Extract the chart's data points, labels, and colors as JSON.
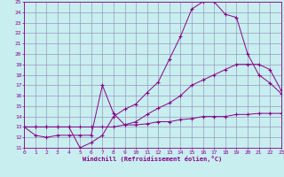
{
  "xlabel": "Windchill (Refroidissement éolien,°C)",
  "bg_color": "#c8eef0",
  "line_color": "#880088",
  "grid_color": "#9999bb",
  "xlim": [
    0,
    23
  ],
  "ylim": [
    11,
    25
  ],
  "xticks": [
    0,
    1,
    2,
    3,
    4,
    5,
    6,
    7,
    8,
    9,
    10,
    11,
    12,
    13,
    14,
    15,
    16,
    17,
    18,
    19,
    20,
    21,
    22,
    23
  ],
  "yticks": [
    11,
    12,
    13,
    14,
    15,
    16,
    17,
    18,
    19,
    20,
    21,
    22,
    23,
    24,
    25
  ],
  "curve1_x": [
    0,
    1,
    2,
    3,
    4,
    5,
    6,
    7,
    8,
    9,
    10,
    11,
    12,
    13,
    14,
    15,
    16,
    17,
    18,
    19,
    20,
    21,
    22,
    23
  ],
  "curve1_y": [
    13.0,
    13.0,
    13.0,
    13.0,
    13.0,
    11.0,
    11.5,
    12.2,
    14.0,
    14.7,
    15.2,
    16.3,
    17.3,
    19.5,
    21.7,
    24.3,
    25.0,
    25.0,
    23.8,
    23.5,
    20.0,
    18.0,
    17.2,
    16.2
  ],
  "curve2_x": [
    0,
    1,
    2,
    3,
    4,
    5,
    6,
    7,
    8,
    9,
    10,
    11,
    12,
    13,
    14,
    15,
    16,
    17,
    18,
    19,
    20,
    21,
    22,
    23
  ],
  "curve2_y": [
    13.0,
    12.2,
    12.0,
    12.2,
    12.2,
    12.2,
    12.2,
    17.0,
    14.3,
    13.2,
    13.5,
    14.2,
    14.8,
    15.3,
    16.0,
    17.0,
    17.5,
    18.0,
    18.5,
    19.0,
    19.0,
    19.0,
    18.5,
    16.5
  ],
  "curve3_x": [
    0,
    1,
    2,
    3,
    4,
    5,
    6,
    7,
    8,
    9,
    10,
    11,
    12,
    13,
    14,
    15,
    16,
    17,
    18,
    19,
    20,
    21,
    22,
    23
  ],
  "curve3_y": [
    13.0,
    13.0,
    13.0,
    13.0,
    13.0,
    13.0,
    13.0,
    13.0,
    13.0,
    13.2,
    13.2,
    13.3,
    13.5,
    13.5,
    13.7,
    13.8,
    14.0,
    14.0,
    14.0,
    14.2,
    14.2,
    14.3,
    14.3,
    14.3
  ]
}
